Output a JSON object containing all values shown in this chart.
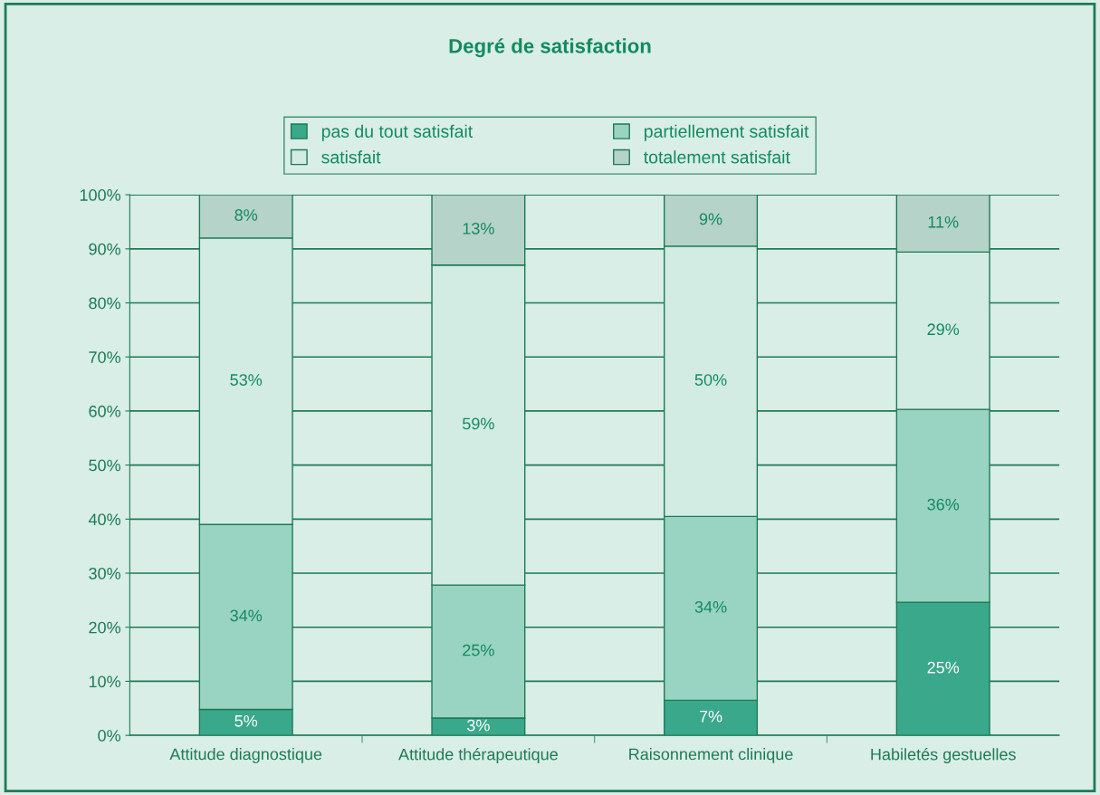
{
  "chart_data": {
    "type": "bar",
    "title": "Degré de satisfaction",
    "stacked": true,
    "categories": [
      "Attitude diagnostique",
      "Attitude thérapeutique",
      "Raisonnement clinique",
      "Habiletés gestuelles"
    ],
    "series": [
      {
        "name": "pas du tout satisfait",
        "color": "#3aa88a",
        "values": [
          4.8,
          3.2,
          6.5,
          24.6
        ],
        "value_labels": [
          "5%",
          "3%",
          "7%",
          "25%"
        ]
      },
      {
        "name": "partiellement satisfait",
        "color": "#99d3c2",
        "values": [
          34.2,
          24.6,
          34.0,
          35.7
        ],
        "value_labels": [
          "34%",
          "25%",
          "34%",
          "36%"
        ]
      },
      {
        "name": "satisfait",
        "color": "#d2ebe3",
        "values": [
          53.0,
          59.2,
          50.0,
          29.1
        ],
        "value_labels": [
          "53%",
          "59%",
          "50%",
          "29%"
        ]
      },
      {
        "name": "totalement satisfait",
        "color": "#b5d3c9",
        "values": [
          8.0,
          13.0,
          9.5,
          10.6
        ],
        "value_labels": [
          "8%",
          "13%",
          "9%",
          "11%"
        ]
      }
    ],
    "ylim": [
      0,
      100
    ],
    "yticks": [
      {
        "value": 0,
        "label": "0%"
      },
      {
        "value": 10,
        "label": "10%"
      },
      {
        "value": 20,
        "label": "20%"
      },
      {
        "value": 30,
        "label": "30%"
      },
      {
        "value": 40,
        "label": "40%"
      },
      {
        "value": 50,
        "label": "50%"
      },
      {
        "value": 60,
        "label": "60%"
      },
      {
        "value": 70,
        "label": "70%"
      },
      {
        "value": 80,
        "label": "80%"
      },
      {
        "value": 90,
        "label": "90%"
      },
      {
        "value": 100,
        "label": "100%"
      }
    ],
    "grid": "y",
    "legend": "top"
  }
}
